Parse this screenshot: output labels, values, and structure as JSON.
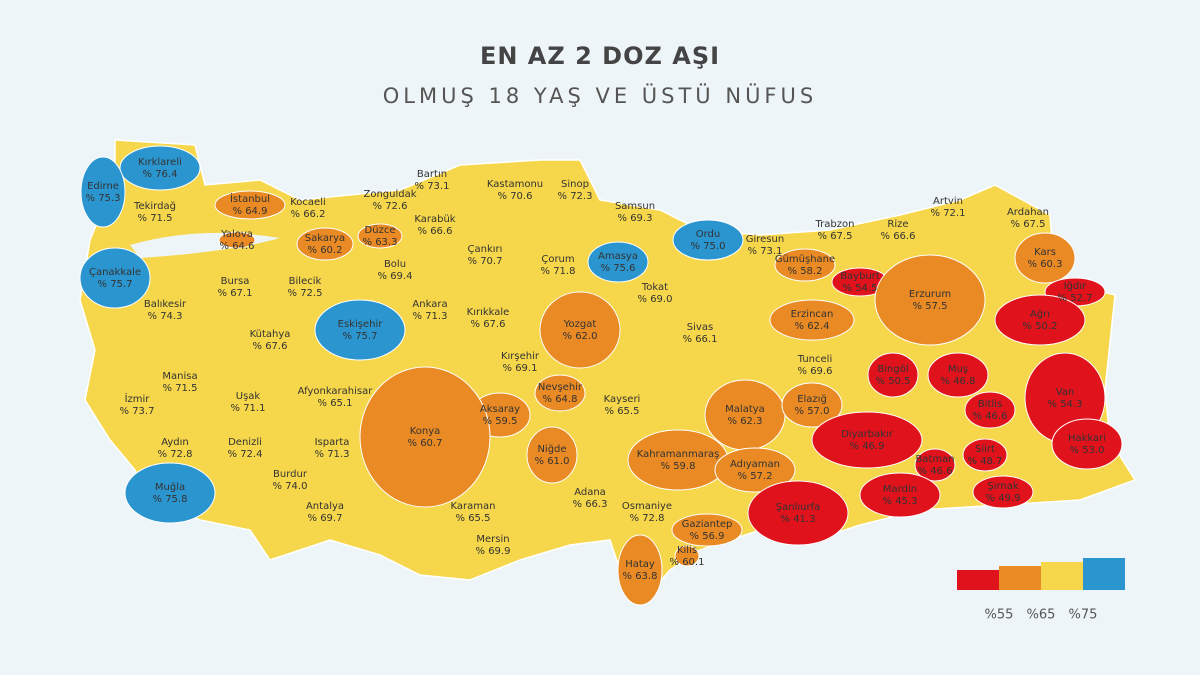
{
  "title": "EN AZ 2 DOZ AŞI",
  "subtitle": "OLMUŞ 18 YAŞ VE ÜSTÜ NÜFUS",
  "provinces": [
    {
      "name": "Kırklareli",
      "value_label": "% 76.4",
      "color": "#2b95cf"
    },
    {
      "name": "Edirne",
      "value_label": "% 75.3",
      "color": "#2b95cf"
    },
    {
      "name": "Tekirdağ",
      "value_label": "% 71.5",
      "color": "#f6d64a"
    },
    {
      "name": "İstanbul",
      "value_label": "% 64.9",
      "color": "#e98a24"
    },
    {
      "name": "Kocaeli",
      "value_label": "% 66.2",
      "color": "#f6d64a"
    },
    {
      "name": "Yalova",
      "value_label": "% 64.6",
      "color": "#e98a24"
    },
    {
      "name": "Sakarya",
      "value_label": "% 60.2",
      "color": "#e98a24"
    },
    {
      "name": "Düzce",
      "value_label": "% 63.3",
      "color": "#e98a24"
    },
    {
      "name": "Zonguldak",
      "value_label": "% 72.6",
      "color": "#f6d64a"
    },
    {
      "name": "Bartın",
      "value_label": "% 73.1",
      "color": "#f6d64a"
    },
    {
      "name": "Karabük",
      "value_label": "% 66.6",
      "color": "#f6d64a"
    },
    {
      "name": "Kastamonu",
      "value_label": "% 70.6",
      "color": "#f6d64a"
    },
    {
      "name": "Sinop",
      "value_label": "% 72.3",
      "color": "#f6d64a"
    },
    {
      "name": "Samsun",
      "value_label": "% 69.3",
      "color": "#f6d64a"
    },
    {
      "name": "Çanakkale",
      "value_label": "% 75.7",
      "color": "#2b95cf"
    },
    {
      "name": "Bursa",
      "value_label": "% 67.1",
      "color": "#f6d64a"
    },
    {
      "name": "Bilecik",
      "value_label": "% 72.5",
      "color": "#f6d64a"
    },
    {
      "name": "Bolu",
      "value_label": "% 69.4",
      "color": "#f6d64a"
    },
    {
      "name": "Çankırı",
      "value_label": "% 70.7",
      "color": "#f6d64a"
    },
    {
      "name": "Çorum",
      "value_label": "% 71.8",
      "color": "#f6d64a"
    },
    {
      "name": "Amasya",
      "value_label": "% 75.6",
      "color": "#2b95cf"
    },
    {
      "name": "Ordu",
      "value_label": "% 75.0",
      "color": "#2b95cf"
    },
    {
      "name": "Giresun",
      "value_label": "% 73.1",
      "color": "#f6d64a"
    },
    {
      "name": "Trabzon",
      "value_label": "% 67.5",
      "color": "#f6d64a"
    },
    {
      "name": "Rize",
      "value_label": "% 66.6",
      "color": "#f6d64a"
    },
    {
      "name": "Artvin",
      "value_label": "% 72.1",
      "color": "#f6d64a"
    },
    {
      "name": "Ardahan",
      "value_label": "% 67.5",
      "color": "#f6d64a"
    },
    {
      "name": "Kars",
      "value_label": "% 60.3",
      "color": "#e98a24"
    },
    {
      "name": "Gümüşhane",
      "value_label": "% 58.2",
      "color": "#e98a24"
    },
    {
      "name": "Bayburt",
      "value_label": "% 54.5",
      "color": "#e0121b"
    },
    {
      "name": "Erzurum",
      "value_label": "% 57.5",
      "color": "#e98a24"
    },
    {
      "name": "Iğdır",
      "value_label": "% 52.7",
      "color": "#e0121b"
    },
    {
      "name": "Ağrı",
      "value_label": "% 50.2",
      "color": "#e0121b"
    },
    {
      "name": "Balıkesir",
      "value_label": "% 74.3",
      "color": "#f6d64a"
    },
    {
      "name": "Eskişehir",
      "value_label": "% 75.7",
      "color": "#2b95cf"
    },
    {
      "name": "Ankara",
      "value_label": "% 71.3",
      "color": "#f6d64a"
    },
    {
      "name": "Kırıkkale",
      "value_label": "% 67.6",
      "color": "#f6d64a"
    },
    {
      "name": "Yozgat",
      "value_label": "% 62.0",
      "color": "#e98a24"
    },
    {
      "name": "Tokat",
      "value_label": "% 69.0",
      "color": "#f6d64a"
    },
    {
      "name": "Sivas",
      "value_label": "% 66.1",
      "color": "#f6d64a"
    },
    {
      "name": "Erzincan",
      "value_label": "% 62.4",
      "color": "#e98a24"
    },
    {
      "name": "Kütahya",
      "value_label": "% 67.6",
      "color": "#f6d64a"
    },
    {
      "name": "Manisa",
      "value_label": "% 71.5",
      "color": "#f6d64a"
    },
    {
      "name": "Uşak",
      "value_label": "% 71.1",
      "color": "#f6d64a"
    },
    {
      "name": "Afyonkarahisar",
      "value_label": "% 65.1",
      "color": "#f6d64a"
    },
    {
      "name": "Kırşehir",
      "value_label": "% 69.1",
      "color": "#f6d64a"
    },
    {
      "name": "Nevşehir",
      "value_label": "% 64.8",
      "color": "#e98a24"
    },
    {
      "name": "Tunceli",
      "value_label": "% 69.6",
      "color": "#f6d64a"
    },
    {
      "name": "Bingöl",
      "value_label": "% 50.5",
      "color": "#e0121b"
    },
    {
      "name": "Muş",
      "value_label": "% 46.8",
      "color": "#e0121b"
    },
    {
      "name": "İzmir",
      "value_label": "% 73.7",
      "color": "#f6d64a"
    },
    {
      "name": "Aksaray",
      "value_label": "% 59.5",
      "color": "#e98a24"
    },
    {
      "name": "Kayseri",
      "value_label": "% 65.5",
      "color": "#f6d64a"
    },
    {
      "name": "Malatya",
      "value_label": "% 62.3",
      "color": "#e98a24"
    },
    {
      "name": "Elazığ",
      "value_label": "% 57.0",
      "color": "#e98a24"
    },
    {
      "name": "Bitlis",
      "value_label": "% 46.6",
      "color": "#e0121b"
    },
    {
      "name": "Van",
      "value_label": "% 54.3",
      "color": "#e0121b"
    },
    {
      "name": "Aydın",
      "value_label": "% 72.8",
      "color": "#f6d64a"
    },
    {
      "name": "Denizli",
      "value_label": "% 72.4",
      "color": "#f6d64a"
    },
    {
      "name": "Isparta",
      "value_label": "% 71.3",
      "color": "#f6d64a"
    },
    {
      "name": "Konya",
      "value_label": "% 60.7",
      "color": "#e98a24"
    },
    {
      "name": "Niğde",
      "value_label": "% 61.0",
      "color": "#e98a24"
    },
    {
      "name": "Kahramanmaraş",
      "value_label": "% 59.8",
      "color": "#e98a24"
    },
    {
      "name": "Diyarbakır",
      "value_label": "% 46.9",
      "color": "#e0121b"
    },
    {
      "name": "Siirt",
      "value_label": "% 48.7",
      "color": "#e0121b"
    },
    {
      "name": "Batman",
      "value_label": "% 46.6",
      "color": "#e0121b"
    },
    {
      "name": "Hakkari",
      "value_label": "% 53.0",
      "color": "#e0121b"
    },
    {
      "name": "Adıyaman",
      "value_label": "% 57.2",
      "color": "#e98a24"
    },
    {
      "name": "Burdur",
      "value_label": "% 74.0",
      "color": "#f6d64a"
    },
    {
      "name": "Muğla",
      "value_label": "% 75.8",
      "color": "#2b95cf"
    },
    {
      "name": "Mardin",
      "value_label": "% 45.3",
      "color": "#e0121b"
    },
    {
      "name": "Şırnak",
      "value_label": "% 49.9",
      "color": "#e0121b"
    },
    {
      "name": "Antalya",
      "value_label": "% 69.7",
      "color": "#f6d64a"
    },
    {
      "name": "Karaman",
      "value_label": "% 65.5",
      "color": "#f6d64a"
    },
    {
      "name": "Adana",
      "value_label": "% 66.3",
      "color": "#f6d64a"
    },
    {
      "name": "Osmaniye",
      "value_label": "% 72.8",
      "color": "#f6d64a"
    },
    {
      "name": "Gaziantep",
      "value_label": "% 56.9",
      "color": "#e98a24"
    },
    {
      "name": "Şanlıurfa",
      "value_label": "% 41.3",
      "color": "#e0121b"
    },
    {
      "name": "Mersin",
      "value_label": "% 69.9",
      "color": "#f6d64a"
    },
    {
      "name": "Kilis",
      "value_label": "% 60.1",
      "color": "#e98a24"
    },
    {
      "name": "Hatay",
      "value_label": "% 63.8",
      "color": "#e98a24"
    }
  ],
  "legend": {
    "colors": [
      "#e0121b",
      "#e98a24",
      "#f6d64a",
      "#2b95cf"
    ],
    "labels": [
      "%55",
      "%65",
      "%75"
    ]
  }
}
